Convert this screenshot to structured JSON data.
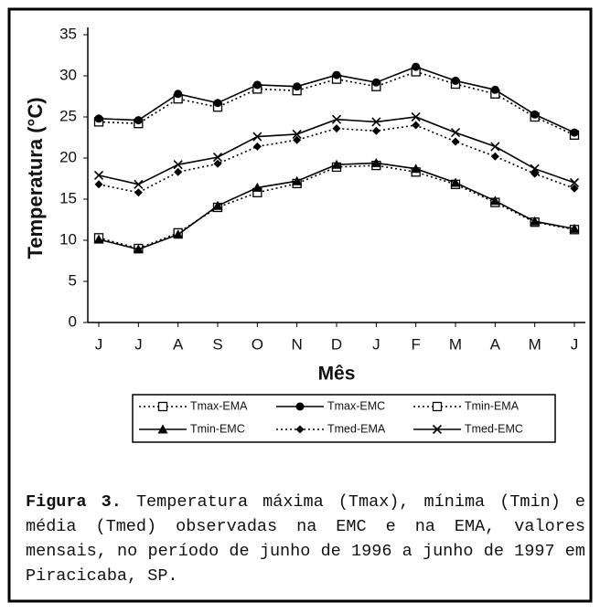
{
  "chart_data": {
    "type": "line",
    "y_label": "Temperatura (°C)",
    "x_label": "Mês",
    "categories": [
      "J",
      "J",
      "A",
      "S",
      "O",
      "N",
      "D",
      "J",
      "F",
      "M",
      "A",
      "M",
      "J"
    ],
    "ylim": [
      0,
      35
    ],
    "yticks": [
      0,
      5,
      10,
      15,
      20,
      25,
      30,
      35
    ],
    "series": [
      {
        "name": "Tmax-EMA",
        "color": "#000000",
        "dash": "dotted",
        "marker": "square-open",
        "values": [
          24.4,
          24.2,
          27.2,
          26.2,
          28.4,
          28.2,
          29.6,
          28.7,
          30.5,
          29.0,
          27.8,
          25.0,
          22.8
        ]
      },
      {
        "name": "Tmax-EMC",
        "color": "#000000",
        "dash": "solid",
        "marker": "circle",
        "values": [
          24.8,
          24.6,
          27.8,
          26.7,
          28.9,
          28.7,
          30.1,
          29.2,
          31.1,
          29.4,
          28.3,
          25.3,
          23.1
        ]
      },
      {
        "name": "Tmin-EMA",
        "color": "#000000",
        "dash": "dotted",
        "marker": "square-open",
        "values": [
          10.3,
          9.0,
          10.9,
          14.0,
          15.8,
          16.9,
          18.9,
          19.1,
          18.3,
          16.8,
          14.6,
          12.2,
          11.3
        ]
      },
      {
        "name": "Tmin-EMC",
        "color": "#000000",
        "dash": "solid",
        "marker": "triangle",
        "values": [
          10.1,
          8.9,
          10.7,
          14.2,
          16.4,
          17.2,
          19.2,
          19.4,
          18.7,
          17.0,
          14.8,
          12.3,
          11.4
        ]
      },
      {
        "name": "Tmed-EMA",
        "color": "#000000",
        "dash": "dotted",
        "marker": "diamond",
        "values": [
          16.8,
          15.8,
          18.3,
          19.3,
          21.4,
          22.2,
          23.6,
          23.3,
          24.0,
          22.0,
          20.2,
          18.1,
          16.3
        ]
      },
      {
        "name": "Tmed-EMC",
        "color": "#000000",
        "dash": "solid",
        "marker": "x",
        "values": [
          17.9,
          16.8,
          19.2,
          20.1,
          22.6,
          22.9,
          24.7,
          24.4,
          25.0,
          23.1,
          21.4,
          18.7,
          17.0
        ]
      }
    ]
  },
  "caption": {
    "label": "Figura 3.",
    "text": "Temperatura máxima (Tmax), mínima (Tmin) e média (Tmed) observadas na EMC e na EMA, valores mensais, no período de junho de 1996 a junho de 1997 em Piracicaba, SP."
  }
}
